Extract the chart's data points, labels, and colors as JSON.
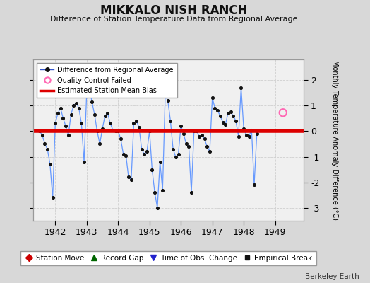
{
  "title": "MIKKALO NISH RANCH",
  "subtitle": "Difference of Station Temperature Data from Regional Average",
  "ylabel": "Monthly Temperature Anomaly Difference (°C)",
  "xlabel_years": [
    1942,
    1943,
    1944,
    1945,
    1946,
    1947,
    1948,
    1949
  ],
  "bias_value": 0.0,
  "background_color": "#d8d8d8",
  "plot_bg_color": "#f0f0f0",
  "ylim": [
    -3.5,
    2.8
  ],
  "xlim": [
    1941.3,
    1949.9
  ],
  "line_color": "#6699ff",
  "dot_color": "#111111",
  "bias_color": "#dd0000",
  "qc_color": "#ff69b4",
  "qc_x": 1949.25,
  "qc_y": 0.72,
  "time_series": [
    1941.5,
    1941.583,
    1941.667,
    1941.75,
    1941.833,
    1941.917,
    1942.0,
    1942.083,
    1942.167,
    1942.25,
    1942.333,
    1942.417,
    1942.5,
    1942.583,
    1942.667,
    1942.75,
    1942.833,
    1942.917,
    1943.0,
    1943.083,
    1943.167,
    1943.25,
    1943.333,
    1943.417,
    1943.5,
    1943.583,
    1943.667,
    1943.75,
    1943.833,
    1943.917,
    1944.0,
    1944.083,
    1944.167,
    1944.25,
    1944.333,
    1944.417,
    1944.5,
    1944.583,
    1944.667,
    1944.75,
    1944.833,
    1944.917,
    1945.0,
    1945.083,
    1945.167,
    1945.25,
    1945.333,
    1945.417,
    1945.5,
    1945.583,
    1945.667,
    1945.75,
    1945.833,
    1945.917,
    1946.0,
    1946.083,
    1946.167,
    1946.25,
    1946.333,
    1946.417,
    1946.5,
    1946.583,
    1946.667,
    1946.75,
    1946.833,
    1946.917,
    1947.0,
    1947.083,
    1947.167,
    1947.25,
    1947.333,
    1947.417,
    1947.5,
    1947.583,
    1947.667,
    1947.75,
    1947.833,
    1947.917,
    1948.0,
    1948.083,
    1948.167,
    1948.25,
    1948.333,
    1948.417
  ],
  "values": [
    0.0,
    -0.15,
    -0.5,
    -0.7,
    -1.3,
    -2.6,
    0.3,
    0.7,
    0.9,
    0.5,
    0.2,
    -0.15,
    0.65,
    1.0,
    1.1,
    0.9,
    0.3,
    -1.2,
    1.5,
    1.7,
    1.15,
    0.65,
    0.0,
    -0.5,
    0.1,
    0.6,
    0.7,
    0.3,
    0.05,
    0.0,
    0.0,
    -0.3,
    -0.9,
    -0.95,
    -1.8,
    -1.9,
    0.3,
    0.4,
    0.15,
    -0.7,
    -0.9,
    -0.8,
    0.0,
    -1.5,
    -2.4,
    -3.0,
    -1.2,
    -2.3,
    1.4,
    1.2,
    0.4,
    -0.7,
    -1.0,
    -0.9,
    0.2,
    -0.1,
    -0.5,
    -0.6,
    -2.4,
    0.0,
    0.0,
    -0.2,
    -0.15,
    -0.3,
    -0.6,
    -0.8,
    1.3,
    0.9,
    0.8,
    0.6,
    0.35,
    0.25,
    0.7,
    0.75,
    0.6,
    0.4,
    -0.2,
    1.7,
    0.1,
    -0.15,
    -0.2,
    0.05,
    -2.1,
    -0.1
  ]
}
